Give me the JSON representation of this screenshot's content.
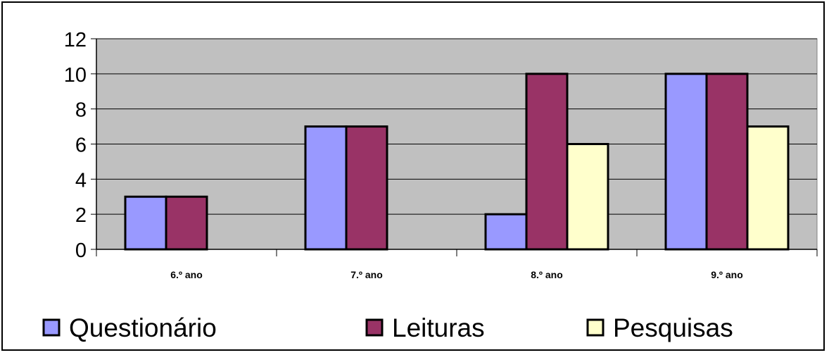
{
  "chart_data": {
    "type": "bar",
    "categories": [
      "6.º ano",
      "7.º ano",
      "8.º ano",
      "9.º ano"
    ],
    "series": [
      {
        "name": "Questionário",
        "values": [
          3,
          7,
          2,
          10
        ],
        "color": "#9999ff"
      },
      {
        "name": "Leituras",
        "values": [
          3,
          7,
          10,
          10
        ],
        "color": "#993366"
      },
      {
        "name": "Pesquisas",
        "values": [
          0,
          0,
          6,
          7
        ],
        "color": "#ffffcc"
      }
    ],
    "yticks": [
      0,
      2,
      4,
      6,
      8,
      10,
      12
    ],
    "ylim": [
      0,
      12
    ],
    "grid": true,
    "plot_background": "#c0c0c0",
    "legend_position": "bottom"
  }
}
